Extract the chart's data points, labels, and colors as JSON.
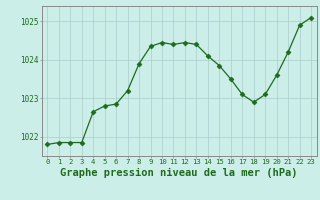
{
  "x": [
    0,
    1,
    2,
    3,
    4,
    5,
    6,
    7,
    8,
    9,
    10,
    11,
    12,
    13,
    14,
    15,
    16,
    17,
    18,
    19,
    20,
    21,
    22,
    23
  ],
  "y": [
    1021.8,
    1021.85,
    1021.85,
    1021.85,
    1022.65,
    1022.8,
    1022.85,
    1023.2,
    1023.9,
    1024.35,
    1024.45,
    1024.4,
    1024.45,
    1024.4,
    1024.1,
    1023.85,
    1023.5,
    1023.1,
    1022.9,
    1023.1,
    1023.6,
    1024.2,
    1024.9,
    1025.1
  ],
  "line_color": "#1e6b1e",
  "marker": "D",
  "marker_size": 2.5,
  "bg_color": "#cceee8",
  "grid_color": "#aacccc",
  "axes_bg": "#cceee8",
  "xlabel": "Graphe pression niveau de la mer (hPa)",
  "xlabel_fontsize": 7.5,
  "ylim": [
    1021.5,
    1025.4
  ],
  "yticks": [
    1022,
    1023,
    1024,
    1025
  ],
  "xticks": [
    0,
    1,
    2,
    3,
    4,
    5,
    6,
    7,
    8,
    9,
    10,
    11,
    12,
    13,
    14,
    15,
    16,
    17,
    18,
    19,
    20,
    21,
    22,
    23
  ],
  "xtick_labels": [
    "0",
    "1",
    "2",
    "3",
    "4",
    "5",
    "6",
    "7",
    "8",
    "9",
    "10",
    "11",
    "12",
    "13",
    "14",
    "15",
    "16",
    "17",
    "18",
    "19",
    "20",
    "21",
    "22",
    "23"
  ],
  "tick_label_color": "#1e6b1e",
  "spine_color": "#888888"
}
